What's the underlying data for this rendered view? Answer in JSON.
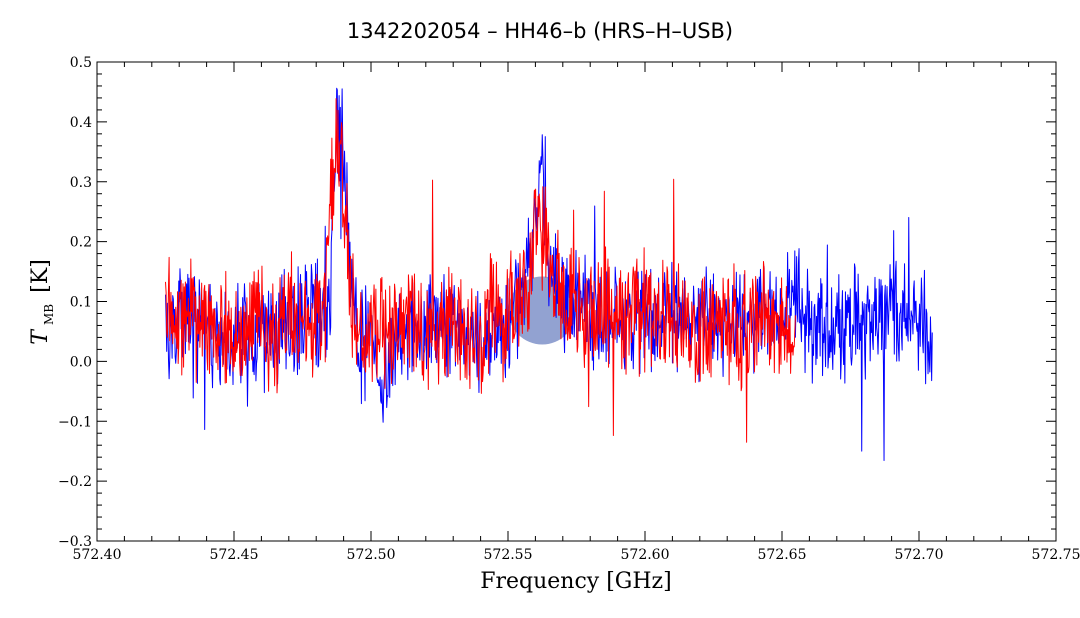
{
  "chart_data": {
    "type": "line",
    "title": "1342202054 – HH46–b (HRS–H–USB)",
    "xlabel": "Frequency [GHz]",
    "ylabel": {
      "symbol": "T",
      "subscript": "MB",
      "unit": "[K]"
    },
    "xlim": [
      572.4,
      572.75
    ],
    "ylim": [
      -0.3,
      0.5
    ],
    "x_ticks": [
      572.4,
      572.45,
      572.5,
      572.55,
      572.6,
      572.65,
      572.7,
      572.75
    ],
    "x_tick_labels": [
      "572.40",
      "572.45",
      "572.50",
      "572.55",
      "572.60",
      "572.65",
      "572.70",
      "572.75"
    ],
    "y_ticks": [
      -0.3,
      -0.2,
      -0.1,
      0.0,
      0.1,
      0.2,
      0.3,
      0.4,
      0.5
    ],
    "y_tick_labels": [
      "−0.3",
      "−0.2",
      "−0.1",
      "0.0",
      "0.1",
      "0.2",
      "0.3",
      "0.4",
      "0.5"
    ],
    "grid": false,
    "colors": {
      "series_1": "#0000ff",
      "series_2": "#ff0000",
      "watermark": "#7f92c9"
    },
    "series": [
      {
        "color": "#0000ff",
        "x": [
          572.425,
          572.435,
          572.445,
          572.455,
          572.465,
          572.475,
          572.48,
          572.485,
          572.487,
          572.489,
          572.491,
          572.495,
          572.5,
          572.503,
          572.51,
          572.52,
          572.53,
          572.54,
          572.545,
          572.55,
          572.555,
          572.56,
          572.562,
          572.565,
          572.57,
          572.58,
          572.59,
          572.6,
          572.61,
          572.62,
          572.63,
          572.635,
          572.64,
          572.65,
          572.655,
          572.66,
          572.67,
          572.68,
          572.685,
          572.69,
          572.695,
          572.7,
          572.705
        ],
        "values": [
          0.05,
          0.07,
          0.03,
          0.04,
          0.05,
          0.06,
          0.07,
          0.1,
          0.35,
          0.4,
          0.28,
          0.03,
          0.04,
          -0.05,
          0.06,
          0.05,
          0.07,
          0.04,
          0.05,
          0.06,
          0.1,
          0.24,
          0.32,
          0.18,
          0.12,
          0.08,
          0.07,
          0.06,
          0.08,
          0.07,
          0.05,
          0.09,
          0.06,
          0.07,
          0.11,
          0.06,
          0.05,
          0.07,
          0.06,
          0.08,
          0.07,
          0.06,
          0.05
        ]
      },
      {
        "color": "#ff0000",
        "x": [
          572.425,
          572.43,
          572.435,
          572.44,
          572.445,
          572.45,
          572.455,
          572.46,
          572.465,
          572.47,
          572.475,
          572.48,
          572.483,
          572.486,
          572.488,
          572.49,
          572.492,
          572.495,
          572.5,
          572.505,
          572.51,
          572.515,
          572.52,
          572.525,
          572.53,
          572.535,
          572.54,
          572.545,
          572.55,
          572.555,
          572.558,
          572.56,
          572.563,
          572.566,
          572.57,
          572.575,
          572.58,
          572.585,
          572.59,
          572.595,
          572.6,
          572.605,
          572.61,
          572.615,
          572.62,
          572.625,
          572.63,
          572.635,
          572.64,
          572.645,
          572.65,
          572.655
        ],
        "values": [
          0.09,
          0.06,
          0.08,
          0.04,
          0.05,
          0.03,
          0.07,
          0.05,
          0.04,
          0.09,
          0.05,
          0.06,
          0.08,
          0.3,
          0.38,
          0.33,
          0.1,
          0.05,
          0.04,
          0.06,
          0.05,
          0.07,
          0.04,
          0.06,
          0.07,
          0.06,
          0.05,
          0.08,
          0.06,
          0.07,
          0.16,
          0.24,
          0.21,
          0.14,
          0.1,
          0.08,
          0.07,
          0.09,
          0.06,
          0.08,
          0.07,
          0.06,
          0.08,
          0.07,
          0.05,
          0.07,
          0.06,
          0.04,
          0.07,
          0.06,
          0.05,
          0.06
        ]
      }
    ]
  }
}
